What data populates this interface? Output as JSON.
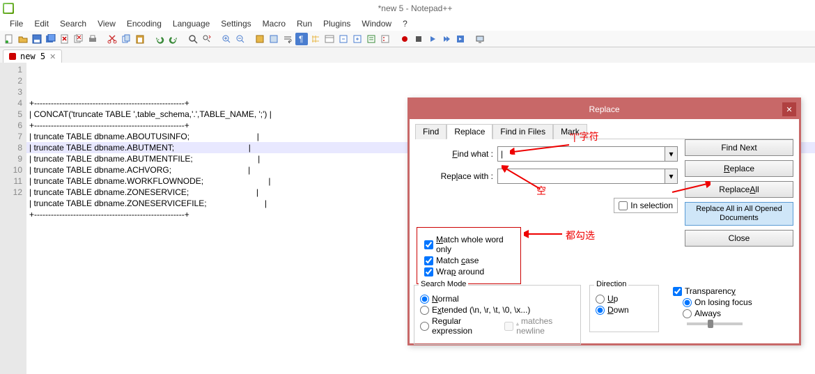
{
  "window": {
    "title": "*new  5 - Notepad++"
  },
  "menu": [
    "File",
    "Edit",
    "Search",
    "View",
    "Encoding",
    "Language",
    "Settings",
    "Macro",
    "Run",
    "Plugins",
    "Window",
    "?"
  ],
  "tab": {
    "name": "new  5"
  },
  "editor": {
    "lines": [
      "+------------------------------------------------------+",
      "| CONCAT('truncate TABLE ',table_schema,'.',TABLE_NAME, ';') |",
      "+------------------------------------------------------+",
      "| truncate TABLE dbname.ABOUTUSINFO;                             |",
      "| truncate TABLE dbname.ABUTMENT;                                |",
      "| truncate TABLE dbname.ABUTMENTFILE;                            |",
      "| truncate TABLE dbname.ACHVORG;                                 |",
      "| truncate TABLE dbname.WORKFLOWNODE;                            |",
      "| truncate TABLE dbname.ZONESERVICE;                             |",
      "| truncate TABLE dbname.ZONESERVICEFILE;                         |",
      "+------------------------------------------------------+",
      ""
    ],
    "highlight_line": 8
  },
  "dialog": {
    "title": "Replace",
    "tabs": [
      "Find",
      "Replace",
      "Find in Files",
      "Mark"
    ],
    "active_tab": 1,
    "find_label": "Find what :",
    "find_value": "|",
    "replace_label": "Replace with :",
    "replace_value": "",
    "in_selection": "In selection",
    "buttons": {
      "find_next": "Find Next",
      "replace": "Replace",
      "replace_all": "Replace All",
      "replace_all_opened": "Replace All in All Opened Documents",
      "close": "Close"
    },
    "options": {
      "whole_word": "Match whole word only",
      "match_case": "Match case",
      "wrap": "Wrap around"
    },
    "search_mode": {
      "legend": "Search Mode",
      "normal": "Normal",
      "extended": "Extended (\\n, \\r, \\t, \\0, \\x...)",
      "regex": "Regular expression",
      "matches_newline": ". matches newline"
    },
    "direction": {
      "legend": "Direction",
      "up": "Up",
      "down": "Down"
    },
    "transparency": {
      "legend": "Transparency",
      "on_losing": "On losing focus",
      "always": "Always"
    }
  },
  "annotations": {
    "pipe": "\"|\"字符",
    "empty": "空",
    "check_all": "都勾选"
  }
}
